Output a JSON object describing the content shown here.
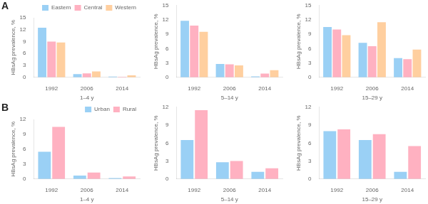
{
  "chart_data": [
    {
      "type": "bar",
      "annotations": [
        "A"
      ],
      "xlabel": "1–4 y",
      "ylabel": "HBsAg prevalence, %",
      "categories": [
        "1992",
        "2006",
        "2014"
      ],
      "series": [
        {
          "name": "Eastern",
          "values": [
            12.5,
            0.8,
            0.2
          ]
        },
        {
          "name": "Central",
          "values": [
            9.0,
            1.0,
            0.15
          ]
        },
        {
          "name": "Western",
          "values": [
            8.8,
            1.5,
            0.5
          ]
        }
      ],
      "ylim": [
        0,
        15
      ],
      "yticks": [
        0,
        3,
        6,
        9,
        12,
        15
      ],
      "grid": false,
      "legend": "upper right"
    },
    {
      "type": "bar",
      "xlabel": "5–14 y",
      "ylabel": "HBsAg prevalence, %",
      "categories": [
        "1992",
        "2006",
        "2014"
      ],
      "series": [
        {
          "name": "Eastern",
          "values": [
            11.8,
            2.8,
            0.2
          ]
        },
        {
          "name": "Central",
          "values": [
            10.8,
            2.7,
            0.8
          ]
        },
        {
          "name": "Western",
          "values": [
            9.5,
            2.5,
            1.5
          ]
        }
      ],
      "ylim": [
        0,
        15
      ],
      "yticks": [
        0,
        3,
        6,
        9,
        12,
        15
      ],
      "grid": false
    },
    {
      "type": "bar",
      "xlabel": "15–29 y",
      "ylabel": "HBsAg prevalence, %",
      "categories": [
        "1992",
        "2006",
        "2014"
      ],
      "series": [
        {
          "name": "Eastern",
          "values": [
            10.5,
            7.2,
            4.0
          ]
        },
        {
          "name": "Central",
          "values": [
            10.0,
            6.5,
            3.8
          ]
        },
        {
          "name": "Western",
          "values": [
            8.8,
            11.5,
            5.8
          ]
        }
      ],
      "ylim": [
        0,
        15
      ],
      "yticks": [
        0,
        3,
        6,
        9,
        12,
        15
      ],
      "grid": false
    },
    {
      "type": "bar",
      "annotations": [
        "B"
      ],
      "xlabel": "1–4 y",
      "ylabel": "HBsAg prevalence, %",
      "categories": [
        "1992",
        "2006",
        "2014"
      ],
      "series": [
        {
          "name": "Urban",
          "values": [
            5.5,
            0.7,
            0.2
          ]
        },
        {
          "name": "Rural",
          "values": [
            10.5,
            1.3,
            0.5
          ]
        }
      ],
      "ylim": [
        0,
        12
      ],
      "yticks": [
        0,
        3,
        6,
        9,
        12
      ],
      "grid": false,
      "legend": "upper right"
    },
    {
      "type": "bar",
      "xlabel": "5–14 y",
      "ylabel": "HBsAg prevalence, %",
      "categories": [
        "1992",
        "2006",
        "2014"
      ],
      "series": [
        {
          "name": "Urban",
          "values": [
            6.5,
            2.8,
            1.2
          ]
        },
        {
          "name": "Rural",
          "values": [
            11.5,
            3.0,
            1.8
          ]
        }
      ],
      "ylim": [
        0,
        12
      ],
      "yticks": [
        0,
        3,
        6,
        9,
        12
      ],
      "grid": false
    },
    {
      "type": "bar",
      "xlabel": "15–29 y",
      "ylabel": "HBsAg prevalence, %",
      "categories": [
        "1992",
        "2006",
        "2014"
      ],
      "series": [
        {
          "name": "Urban",
          "values": [
            8.0,
            6.5,
            1.2
          ]
        },
        {
          "name": "Rural",
          "values": [
            8.3,
            7.5,
            5.5
          ]
        }
      ],
      "ylim": [
        0,
        12
      ],
      "yticks": [
        0,
        3,
        6,
        9,
        12
      ],
      "grid": false
    }
  ]
}
